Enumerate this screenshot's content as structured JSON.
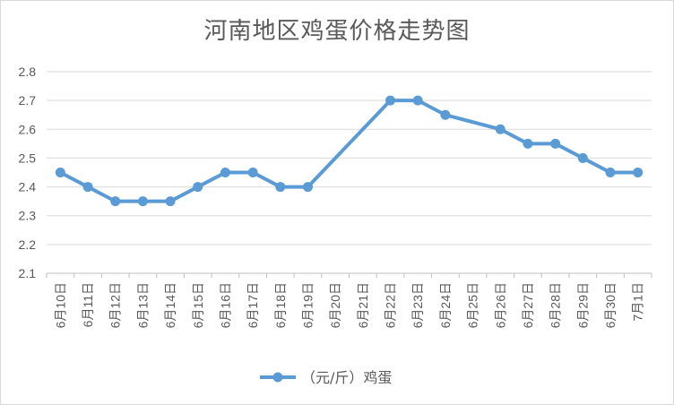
{
  "chart_data": {
    "type": "line",
    "title": "河南地区鸡蛋价格走势图",
    "categories": [
      "6月10日",
      "6月11日",
      "6月12日",
      "6月13日",
      "6月14日",
      "6月15日",
      "6月16日",
      "6月17日",
      "6月18日",
      "6月19日",
      "6月20日",
      "6月21日",
      "6月22日",
      "6月23日",
      "6月24日",
      "6月25日",
      "6月26日",
      "6月27日",
      "6月28日",
      "6月29日",
      "6月30日",
      "7月1日"
    ],
    "series": [
      {
        "name": "（元/斤）鸡蛋",
        "color": "#5B9BD5",
        "values": [
          2.45,
          2.4,
          2.35,
          2.35,
          2.35,
          2.4,
          2.45,
          2.45,
          2.4,
          2.4,
          null,
          null,
          2.7,
          2.7,
          2.65,
          null,
          2.6,
          2.55,
          2.55,
          2.5,
          2.45,
          2.45
        ]
      }
    ],
    "ylim": [
      2.1,
      2.8
    ],
    "yticks": [
      "2.1",
      "2.2",
      "2.3",
      "2.4",
      "2.5",
      "2.6",
      "2.7",
      "2.8"
    ],
    "grid": true,
    "legend": "bottom"
  }
}
